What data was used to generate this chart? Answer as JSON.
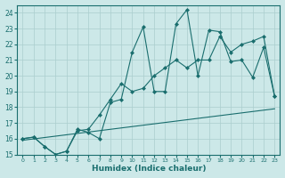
{
  "xlabel": "Humidex (Indice chaleur)",
  "bg_color": "#cce8e8",
  "grid_color": "#aacece",
  "line_color": "#1a6e6e",
  "xlim": [
    -0.5,
    23.5
  ],
  "ylim": [
    15,
    24.5
  ],
  "xticks": [
    0,
    1,
    2,
    3,
    4,
    5,
    6,
    7,
    8,
    9,
    10,
    11,
    12,
    13,
    14,
    15,
    16,
    17,
    18,
    19,
    20,
    21,
    22,
    23
  ],
  "yticks": [
    15,
    16,
    17,
    18,
    19,
    20,
    21,
    22,
    23,
    24
  ],
  "line1_x": [
    0,
    1,
    2,
    3,
    4,
    5,
    6,
    7,
    8,
    9,
    10,
    11,
    12,
    13,
    14,
    15,
    16,
    17,
    18,
    19,
    20,
    21,
    22,
    23
  ],
  "line1_y": [
    16.0,
    16.1,
    15.5,
    15.0,
    15.2,
    16.6,
    16.4,
    16.0,
    18.3,
    18.5,
    21.5,
    23.1,
    19.0,
    19.0,
    23.3,
    24.2,
    20.0,
    22.9,
    22.8,
    20.9,
    21.0,
    19.9,
    21.8,
    18.7
  ],
  "line2_x": [
    0,
    1,
    2,
    3,
    4,
    5,
    6,
    7,
    8,
    9,
    10,
    11,
    12,
    13,
    14,
    15,
    16,
    17,
    18,
    19,
    20,
    21,
    22,
    23
  ],
  "line2_y": [
    16.0,
    16.1,
    15.5,
    15.0,
    15.2,
    16.5,
    16.6,
    17.5,
    18.5,
    19.5,
    19.0,
    19.2,
    20.0,
    20.5,
    21.0,
    20.5,
    21.0,
    21.0,
    22.5,
    21.5,
    22.0,
    22.2,
    22.5,
    18.7
  ],
  "line3_x": [
    0,
    23
  ],
  "line3_y": [
    15.9,
    17.9
  ]
}
